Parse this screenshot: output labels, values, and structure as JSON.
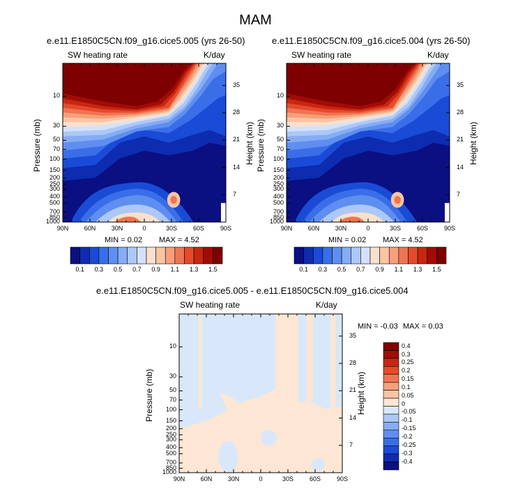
{
  "main_title": "MAM",
  "chart_data": [
    {
      "type": "heatmap",
      "title": "e.e11.E1850C5CN.f09_g16.cice5.005 (yrs 26-50)",
      "left_label": "SW heating rate",
      "right_label": "K/day",
      "xlabel": "",
      "ylabel": "Pressure (mb)",
      "ylabel_right": "Height (km)",
      "x_ticks": [
        "90N",
        "60N",
        "30N",
        "0",
        "30S",
        "60S",
        "90S"
      ],
      "x_values": [
        90,
        60,
        30,
        0,
        -30,
        -60,
        -90
      ],
      "y_ticks": [
        "10",
        "30",
        "50",
        "70",
        "100",
        "150",
        "200",
        "250",
        "300",
        "400",
        "500",
        "700",
        "850",
        "1000"
      ],
      "y_values": [
        10,
        30,
        50,
        70,
        100,
        150,
        200,
        250,
        300,
        400,
        500,
        700,
        850,
        1000
      ],
      "y_right_ticks": [
        "35",
        "28",
        "21",
        "14",
        "7"
      ],
      "y_right_values": [
        35,
        28,
        21,
        14,
        7
      ],
      "ylim": [
        1000,
        3
      ],
      "xlim": [
        90,
        -90
      ],
      "min_text": "MIN =  0.02",
      "max_text": "MAX =  4.52",
      "colorbar_labels": [
        "0.1",
        "0.3",
        "0.5",
        "0.7",
        "0.9",
        "1.1",
        "1.3",
        "1.5"
      ],
      "colorbar_levels": [
        0.1,
        0.2,
        0.3,
        0.4,
        0.5,
        0.6,
        0.7,
        0.8,
        0.9,
        1.0,
        1.1,
        1.2,
        1.3,
        1.4,
        1.5
      ]
    },
    {
      "type": "heatmap",
      "title": "e.e11.E1850C5CN.f09_g16.cice5.004 (yrs 26-50)",
      "left_label": "SW heating rate",
      "right_label": "K/day",
      "xlabel": "",
      "ylabel": "Pressure (mb)",
      "ylabel_right": "Height (km)",
      "x_ticks": [
        "90N",
        "60N",
        "30N",
        "0",
        "30S",
        "60S",
        "90S"
      ],
      "x_values": [
        90,
        60,
        30,
        0,
        -30,
        -60,
        -90
      ],
      "y_ticks": [
        "10",
        "30",
        "50",
        "70",
        "100",
        "150",
        "200",
        "250",
        "300",
        "400",
        "500",
        "700",
        "850",
        "1000"
      ],
      "y_values": [
        10,
        30,
        50,
        70,
        100,
        150,
        200,
        250,
        300,
        400,
        500,
        700,
        850,
        1000
      ],
      "y_right_ticks": [
        "35",
        "28",
        "21",
        "14",
        "7"
      ],
      "y_right_values": [
        35,
        28,
        21,
        14,
        7
      ],
      "ylim": [
        1000,
        3
      ],
      "xlim": [
        90,
        -90
      ],
      "min_text": "MIN =  0.02",
      "max_text": "MAX =  4.52",
      "colorbar_labels": [
        "0.1",
        "0.3",
        "0.5",
        "0.7",
        "0.9",
        "1.1",
        "1.3",
        "1.5"
      ],
      "colorbar_levels": [
        0.1,
        0.2,
        0.3,
        0.4,
        0.5,
        0.6,
        0.7,
        0.8,
        0.9,
        1.0,
        1.1,
        1.2,
        1.3,
        1.4,
        1.5
      ]
    },
    {
      "type": "heatmap",
      "title": "e.e11.E1850C5CN.f09_g16.cice5.005 - e.e11.E1850C5CN.f09_g16.cice5.004",
      "left_label": "SW heating rate",
      "right_label": "K/day",
      "xlabel": "",
      "ylabel": "Pressure (mb)",
      "ylabel_right": "Height (km)",
      "x_ticks": [
        "90N",
        "60N",
        "30N",
        "0",
        "30S",
        "60S",
        "90S"
      ],
      "x_values": [
        90,
        60,
        30,
        0,
        -30,
        -60,
        -90
      ],
      "y_ticks": [
        "10",
        "30",
        "50",
        "70",
        "100",
        "150",
        "200",
        "250",
        "300",
        "400",
        "500",
        "700",
        "850",
        "1000"
      ],
      "y_values": [
        10,
        30,
        50,
        70,
        100,
        150,
        200,
        250,
        300,
        400,
        500,
        700,
        850,
        1000
      ],
      "y_right_ticks": [
        "35",
        "28",
        "21",
        "14",
        "7"
      ],
      "y_right_values": [
        35,
        28,
        21,
        14,
        7
      ],
      "ylim": [
        1000,
        3
      ],
      "xlim": [
        90,
        -90
      ],
      "min_text": "MIN =  -0.03",
      "max_text": "MAX =   0.03",
      "colorbar_labels": [
        "0.4",
        "0.3",
        "0.25",
        "0.2",
        "0.15",
        "0.1",
        "0.05",
        "0",
        "-0.05",
        "-0.1",
        "-0.15",
        "-0.2",
        "-0.25",
        "-0.3",
        "-0.4"
      ],
      "colorbar_levels": [
        0.4,
        0.3,
        0.25,
        0.2,
        0.15,
        0.1,
        0.05,
        0,
        -0.05,
        -0.1,
        -0.15,
        -0.2,
        -0.25,
        -0.3,
        -0.4
      ]
    }
  ],
  "colors": {
    "colorbar_16": [
      "#0a0f82",
      "#0d2cb0",
      "#1a4bd6",
      "#3a6ee8",
      "#5e8ff0",
      "#86acf4",
      "#adc8f6",
      "#d3e2fa",
      "#fbe0cc",
      "#f8c4a4",
      "#f5a07a",
      "#ef7552",
      "#e54a2a",
      "#c82614",
      "#a10c05",
      "#7e0000"
    ],
    "colorbar_diff": [
      "#7e0000",
      "#a10c05",
      "#c82614",
      "#e54a2a",
      "#ef7552",
      "#f5a07a",
      "#f8c4a4",
      "#fde6d3",
      "#d8e8fa",
      "#adc8f6",
      "#86acf4",
      "#5e8ff0",
      "#3a6ee8",
      "#1a4bd6",
      "#0d2cb0",
      "#0a0f82"
    ],
    "diff_light_red": "#fde6d3",
    "diff_light_blue": "#d8e8fa"
  }
}
